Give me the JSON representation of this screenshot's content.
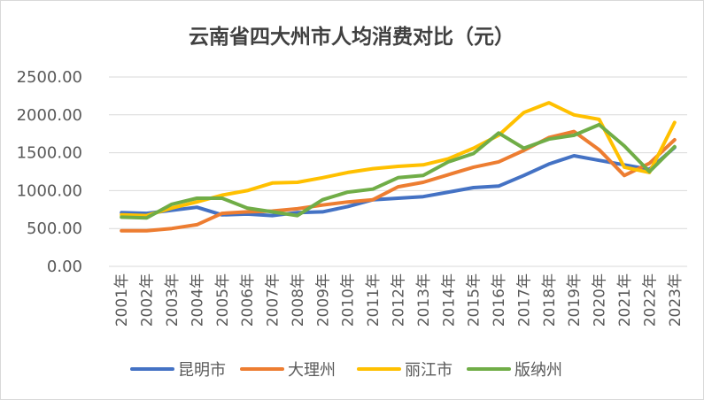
{
  "chart_data": {
    "type": "line",
    "title": "云南省四大州市人均消费对比（元）",
    "xlabel": "",
    "ylabel": "",
    "ylim": [
      0,
      2500
    ],
    "yticks": [
      "0.00",
      "500.00",
      "1000.00",
      "1500.00",
      "2000.00",
      "2500.00"
    ],
    "categories": [
      "2001年",
      "2002年",
      "2003年",
      "2004年",
      "2005年",
      "2006年",
      "2007年",
      "2008年",
      "2009年",
      "2010年",
      "2011年",
      "2012年",
      "2013年",
      "2014年",
      "2015年",
      "2016年",
      "2017年",
      "2018年",
      "2019年",
      "2020年",
      "2021年",
      "2022年",
      "2023年"
    ],
    "legend_position": "bottom",
    "grid": true,
    "series": [
      {
        "name": "昆明市",
        "color": "#4472C4",
        "values": [
          710,
          700,
          740,
          780,
          680,
          690,
          670,
          710,
          720,
          790,
          880,
          900,
          920,
          980,
          1040,
          1060,
          1200,
          1350,
          1460,
          1400,
          1340,
          1280,
          1570
        ]
      },
      {
        "name": "大理州",
        "color": "#ED7D31",
        "values": [
          470,
          470,
          500,
          550,
          700,
          720,
          730,
          760,
          810,
          850,
          880,
          1050,
          1110,
          1210,
          1310,
          1380,
          1530,
          1700,
          1780,
          1540,
          1200,
          1360,
          1670
        ]
      },
      {
        "name": "丽江市",
        "color": "#FFC000",
        "values": [
          680,
          670,
          770,
          850,
          940,
          1000,
          1100,
          1110,
          1170,
          1240,
          1290,
          1320,
          1340,
          1420,
          1560,
          1730,
          2030,
          2160,
          2000,
          1940,
          1310,
          1240,
          1900
        ]
      },
      {
        "name": "版纳州",
        "color": "#70AD47",
        "values": [
          650,
          640,
          820,
          900,
          900,
          770,
          720,
          670,
          880,
          980,
          1020,
          1170,
          1200,
          1380,
          1490,
          1760,
          1560,
          1680,
          1730,
          1870,
          1590,
          1250,
          1580
        ]
      }
    ]
  }
}
